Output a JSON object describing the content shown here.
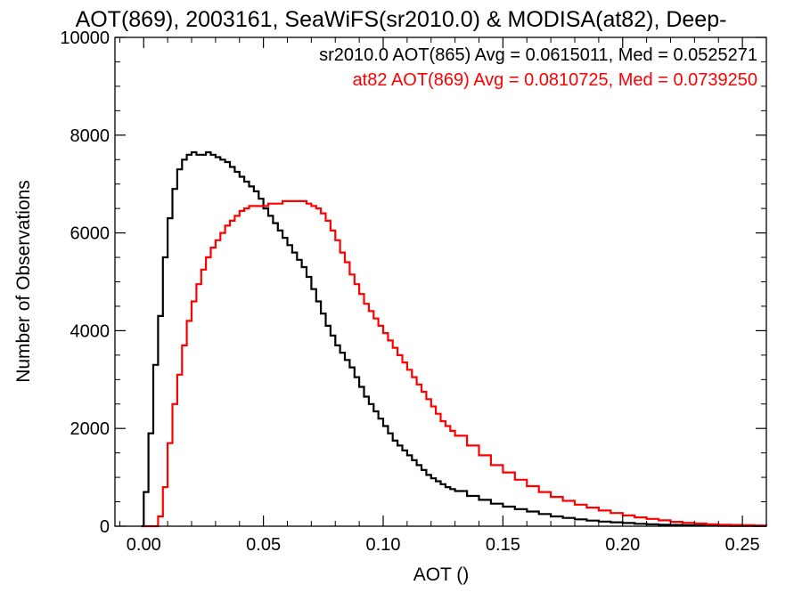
{
  "chart_data": {
    "type": "line",
    "style": "histogram-step",
    "title": "AOT(869), 2003161, SeaWiFS(sr2010.0) & MODISA(at82), Deep-",
    "xlabel": "AOT ()",
    "ylabel": "Number of Observations",
    "xlim": [
      -0.012,
      0.26
    ],
    "ylim": [
      0,
      10000
    ],
    "xticks": [
      0.0,
      0.05,
      0.1,
      0.15,
      0.2,
      0.25
    ],
    "xtick_labels": [
      "0.00",
      "0.05",
      "0.10",
      "0.15",
      "0.20",
      "0.25"
    ],
    "yticks": [
      0,
      2000,
      4000,
      6000,
      8000,
      10000
    ],
    "ytick_labels": [
      "0",
      "2000",
      "4000",
      "6000",
      "8000",
      "10000"
    ],
    "grid": false,
    "annotations": [
      {
        "text": "sr2010.0 AOT(865) Avg = 0.0615011, Med = 0.0525271",
        "color": "#000000"
      },
      {
        "text": "at82 AOT(869) Avg = 0.0810725, Med = 0.0739250",
        "color": "#ff0000"
      }
    ],
    "series": [
      {
        "color": "#000000",
        "x": [
          -0.001,
          0.0,
          0.002,
          0.004,
          0.006,
          0.008,
          0.01,
          0.012,
          0.014,
          0.016,
          0.018,
          0.02,
          0.022,
          0.024,
          0.026,
          0.028,
          0.03,
          0.032,
          0.034,
          0.036,
          0.038,
          0.04,
          0.042,
          0.044,
          0.046,
          0.048,
          0.05,
          0.052,
          0.054,
          0.056,
          0.058,
          0.06,
          0.062,
          0.064,
          0.066,
          0.068,
          0.07,
          0.072,
          0.074,
          0.076,
          0.078,
          0.08,
          0.082,
          0.084,
          0.086,
          0.088,
          0.09,
          0.092,
          0.094,
          0.096,
          0.098,
          0.1,
          0.102,
          0.104,
          0.106,
          0.108,
          0.11,
          0.112,
          0.114,
          0.116,
          0.118,
          0.12,
          0.122,
          0.124,
          0.126,
          0.128,
          0.13,
          0.135,
          0.14,
          0.145,
          0.15,
          0.155,
          0.16,
          0.165,
          0.17,
          0.175,
          0.18,
          0.185,
          0.19,
          0.195,
          0.2,
          0.205,
          0.21,
          0.215,
          0.22,
          0.225,
          0.23,
          0.235,
          0.24,
          0.245,
          0.25,
          0.255,
          0.26
        ],
        "values": [
          0,
          700,
          1900,
          3300,
          4300,
          5500,
          6300,
          6900,
          7300,
          7500,
          7600,
          7650,
          7600,
          7600,
          7650,
          7600,
          7550,
          7500,
          7450,
          7350,
          7250,
          7150,
          7050,
          6950,
          6850,
          6700,
          6500,
          6350,
          6200,
          6050,
          5900,
          5750,
          5600,
          5450,
          5300,
          5100,
          4850,
          4600,
          4350,
          4100,
          3900,
          3700,
          3550,
          3400,
          3250,
          3050,
          2850,
          2650,
          2500,
          2350,
          2200,
          2050,
          1900,
          1750,
          1650,
          1550,
          1450,
          1350,
          1250,
          1150,
          1050,
          980,
          920,
          860,
          800,
          760,
          720,
          620,
          540,
          460,
          400,
          350,
          300,
          250,
          200,
          170,
          140,
          115,
          95,
          80,
          65,
          50,
          40,
          30,
          25,
          20,
          15,
          12,
          10,
          8,
          6,
          4,
          3
        ]
      },
      {
        "color": "#ff0000",
        "x": [
          0.0,
          0.004,
          0.006,
          0.008,
          0.01,
          0.012,
          0.014,
          0.016,
          0.018,
          0.02,
          0.022,
          0.024,
          0.026,
          0.028,
          0.03,
          0.032,
          0.034,
          0.036,
          0.038,
          0.04,
          0.042,
          0.044,
          0.046,
          0.048,
          0.05,
          0.052,
          0.054,
          0.056,
          0.058,
          0.06,
          0.062,
          0.064,
          0.066,
          0.068,
          0.07,
          0.072,
          0.074,
          0.076,
          0.078,
          0.08,
          0.082,
          0.084,
          0.086,
          0.088,
          0.09,
          0.092,
          0.094,
          0.096,
          0.098,
          0.1,
          0.102,
          0.104,
          0.106,
          0.108,
          0.11,
          0.112,
          0.114,
          0.116,
          0.118,
          0.12,
          0.122,
          0.124,
          0.126,
          0.128,
          0.13,
          0.135,
          0.14,
          0.145,
          0.15,
          0.155,
          0.16,
          0.165,
          0.17,
          0.175,
          0.18,
          0.185,
          0.19,
          0.195,
          0.2,
          0.205,
          0.21,
          0.215,
          0.22,
          0.225,
          0.23,
          0.235,
          0.24,
          0.245,
          0.25,
          0.255,
          0.26
        ],
        "values": [
          0,
          0,
          200,
          800,
          1700,
          2500,
          3100,
          3700,
          4200,
          4600,
          4950,
          5250,
          5500,
          5700,
          5850,
          6000,
          6150,
          6250,
          6350,
          6450,
          6500,
          6550,
          6550,
          6550,
          6550,
          6600,
          6600,
          6600,
          6650,
          6650,
          6650,
          6650,
          6650,
          6600,
          6550,
          6500,
          6400,
          6250,
          6050,
          5850,
          5600,
          5400,
          5150,
          4950,
          4750,
          4550,
          4400,
          4250,
          4100,
          3950,
          3800,
          3650,
          3500,
          3350,
          3200,
          3050,
          2900,
          2750,
          2600,
          2450,
          2300,
          2150,
          2050,
          1950,
          1850,
          1650,
          1450,
          1250,
          1100,
          950,
          820,
          700,
          600,
          520,
          440,
          380,
          320,
          270,
          220,
          180,
          150,
          120,
          90,
          70,
          55,
          40,
          30,
          25,
          20,
          15,
          10
        ]
      }
    ]
  }
}
